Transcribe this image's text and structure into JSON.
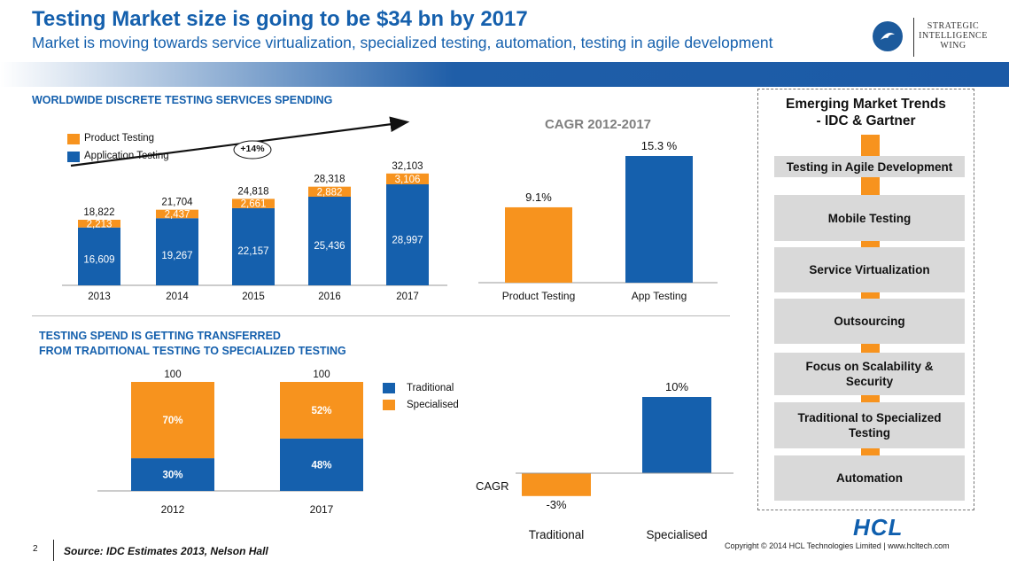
{
  "header": {
    "title": "Testing Market size is going to be $34 bn by 2017",
    "subtitle": "Market is moving towards service virtualization, specialized testing, automation, testing in agile development",
    "brand_lines": [
      "STRATEGIC",
      "INTELLIGENCE",
      "WING"
    ]
  },
  "colors": {
    "orange": "#f7931e",
    "blue": "#1560ad",
    "grey_box": "#d9d9d9"
  },
  "chart_data": [
    {
      "type": "bar",
      "stacked": true,
      "title": "WORLDWIDE DISCRETE TESTING SERVICES SPENDING",
      "categories": [
        "2013",
        "2014",
        "2015",
        "2016",
        "2017"
      ],
      "series": [
        {
          "name": "Application Testing",
          "values": [
            16609,
            19267,
            22157,
            25436,
            28997
          ],
          "labels": [
            "16,609",
            "19,267",
            "22,157",
            "25,436",
            "28,997"
          ],
          "color": "#1560ad"
        },
        {
          "name": "Product Testing",
          "values": [
            2213,
            2437,
            2661,
            2882,
            3106
          ],
          "labels": [
            "2,213",
            "2,437",
            "2,661",
            "2,882",
            "3,106"
          ],
          "color": "#f7931e"
        }
      ],
      "totals": [
        "18,822",
        "21,704",
        "24,818",
        "28,318",
        "32,103"
      ],
      "annotation": "+14%",
      "legend": [
        "Product Testing",
        "Application Testing"
      ],
      "legend_position": "top-left",
      "ylim": [
        0,
        36000
      ]
    },
    {
      "type": "bar",
      "title": "CAGR 2012-2017",
      "categories": [
        "Product Testing",
        "App Testing"
      ],
      "values": [
        9.1,
        15.3
      ],
      "labels": [
        "9.1%",
        "15.3 %"
      ],
      "colors": [
        "#f7931e",
        "#1560ad"
      ],
      "ylim": [
        0,
        18
      ]
    },
    {
      "type": "bar",
      "stacked": true,
      "title": "TESTING SPEND IS GETTING TRANSFERRED",
      "title_line2": "FROM TRADITIONAL TESTING TO SPECIALIZED TESTING",
      "categories": [
        "2012",
        "2017"
      ],
      "series": [
        {
          "name": "Traditional",
          "values": [
            30,
            48
          ],
          "labels": [
            "30%",
            "48%"
          ],
          "color": "#1560ad"
        },
        {
          "name": "Specialised",
          "values": [
            70,
            52
          ],
          "labels": [
            "70%",
            "52%"
          ],
          "color": "#f7931e"
        }
      ],
      "totals": [
        "100",
        "100"
      ],
      "legend": [
        "Traditional",
        "Specialised"
      ],
      "legend_position": "right",
      "ylim": [
        0,
        100
      ]
    },
    {
      "type": "bar",
      "categories": [
        "Traditional",
        "Specialised"
      ],
      "values": [
        -3,
        10
      ],
      "labels": [
        "-3%",
        "10%"
      ],
      "colors": [
        "#f7931e",
        "#1560ad"
      ],
      "ylabel": "CAGR",
      "ylim": [
        -4,
        12
      ]
    }
  ],
  "trends": {
    "title_line1": "Emerging Market Trends",
    "title_line2": "- IDC & Gartner",
    "items": [
      {
        "line1": "Testing in Agile Development",
        "line2": ""
      },
      {
        "line1": "Mobile Testing",
        "line2": ""
      },
      {
        "line1": "Service Virtualization",
        "line2": ""
      },
      {
        "line1": "Outsourcing",
        "line2": ""
      },
      {
        "line1": "Focus on Scalability &",
        "line2": "Security"
      },
      {
        "line1": "Traditional to Specialized",
        "line2": "Testing"
      },
      {
        "line1": "Automation",
        "line2": ""
      }
    ]
  },
  "footer": {
    "page": "2",
    "source": "Source: IDC Estimates 2013, Nelson Hall",
    "copyright": "Copyright © 2014 HCL Technologies Limited | www.hcltech.com",
    "logo": "HCL"
  }
}
